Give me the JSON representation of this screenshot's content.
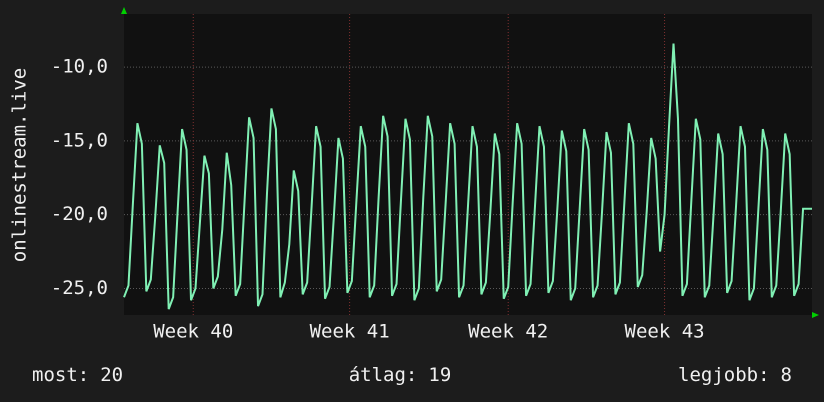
{
  "chart_data": {
    "type": "line",
    "y_label": "onlinestream.live",
    "x": [
      0,
      0.2,
      0.4,
      0.6,
      0.8,
      1,
      1.2,
      1.4,
      1.6,
      1.8,
      2,
      2.2,
      2.4,
      2.6,
      2.8,
      3,
      3.2,
      3.4,
      3.6,
      3.8,
      4,
      4.2,
      4.4,
      4.6,
      4.8,
      5,
      5.2,
      5.4,
      5.6,
      5.8,
      6,
      6.2,
      6.4,
      6.6,
      6.8,
      7,
      7.2,
      7.4,
      7.6,
      7.8,
      8,
      8.2,
      8.4,
      8.6,
      8.8,
      9,
      9.2,
      9.4,
      9.6,
      9.8,
      10,
      10.2,
      10.4,
      10.6,
      10.8,
      11,
      11.2,
      11.4,
      11.6,
      11.8,
      12,
      12.2,
      12.4,
      12.6,
      12.8,
      13,
      13.2,
      13.4,
      13.6,
      13.8,
      14,
      14.2,
      14.4,
      14.6,
      14.8,
      15,
      15.2,
      15.4,
      15.6,
      15.8,
      16,
      16.2,
      16.4,
      16.6,
      16.8,
      17,
      17.2,
      17.4,
      17.6,
      17.8,
      18,
      18.2,
      18.4,
      18.6,
      18.8,
      19,
      19.2,
      19.4,
      19.6,
      19.8,
      20,
      20.2,
      20.4,
      20.6,
      20.8,
      21,
      21.2,
      21.4,
      21.6,
      21.8,
      22,
      22.2,
      22.4,
      22.6,
      22.8,
      23,
      23.2,
      23.4,
      23.6,
      23.8,
      24,
      24.2,
      24.4,
      24.6,
      24.8,
      25,
      25.2,
      25.4,
      25.6,
      25.8,
      26,
      26.2,
      26.4,
      26.6,
      26.8,
      27,
      27.2,
      27.4,
      27.6,
      27.8,
      28,
      28.2,
      28.4,
      28.6,
      28.8,
      29,
      29.2,
      29.4,
      29.6,
      29.8,
      30,
      30.2,
      30.4,
      30.6,
      30.8
    ],
    "series": [
      {
        "name": "onlinestream.live",
        "color": "#80f0b4",
        "values": [
          -25.6,
          -24.8,
          -19.2,
          -13.8,
          -15.2,
          -25.2,
          -24.4,
          -20.1,
          -15.3,
          -16.5,
          -26.4,
          -25.6,
          -19.8,
          -14.2,
          -15.6,
          -25.8,
          -25.0,
          -20.5,
          -16.0,
          -17.2,
          -25.0,
          -24.2,
          -21.0,
          -15.8,
          -18.0,
          -25.5,
          -24.7,
          -19.0,
          -13.4,
          -14.8,
          -26.2,
          -25.4,
          -18.6,
          -12.8,
          -14.2,
          -25.6,
          -24.6,
          -22.0,
          -17.0,
          -18.4,
          -25.4,
          -24.6,
          -19.4,
          -14.0,
          -15.4,
          -25.7,
          -24.9,
          -20.0,
          -14.8,
          -16.2,
          -25.3,
          -24.5,
          -19.2,
          -14.0,
          -15.4,
          -25.6,
          -24.8,
          -18.8,
          -13.3,
          -14.7,
          -25.5,
          -24.7,
          -19.0,
          -13.5,
          -14.9,
          -25.8,
          -25.0,
          -18.8,
          -13.3,
          -14.7,
          -25.2,
          -24.4,
          -19.2,
          -13.8,
          -15.2,
          -25.6,
          -24.8,
          -19.4,
          -14.0,
          -15.4,
          -25.4,
          -24.6,
          -19.8,
          -14.5,
          -15.9,
          -25.7,
          -24.9,
          -19.2,
          -13.8,
          -15.2,
          -25.5,
          -24.7,
          -19.4,
          -14.0,
          -15.4,
          -25.3,
          -24.5,
          -19.6,
          -14.3,
          -15.7,
          -25.8,
          -25.0,
          -19.6,
          -14.2,
          -15.6,
          -25.6,
          -24.8,
          -19.8,
          -14.4,
          -15.8,
          -25.4,
          -24.6,
          -19.2,
          -13.8,
          -15.2,
          -24.9,
          -24.1,
          -19.8,
          -14.8,
          -16.2,
          -22.5,
          -20.0,
          -14.0,
          -8.4,
          -13.5,
          -25.5,
          -24.7,
          -19.0,
          -13.5,
          -14.9,
          -25.6,
          -24.8,
          -19.8,
          -14.5,
          -15.9,
          -25.3,
          -24.5,
          -19.4,
          -14.0,
          -15.4,
          -25.8,
          -25.0,
          -19.6,
          -14.2,
          -15.6,
          -25.6,
          -24.8,
          -19.8,
          -14.5,
          -15.9,
          -25.5,
          -24.7,
          -19.6,
          -19.6,
          -19.6
        ]
      }
    ],
    "xlim": [
      0,
      30.8
    ],
    "xticks": [
      {
        "value": 3.1,
        "label": "Week 40"
      },
      {
        "value": 10.1,
        "label": "Week 41"
      },
      {
        "value": 17.2,
        "label": "Week 42"
      },
      {
        "value": 24.2,
        "label": "Week 43"
      }
    ],
    "ylim": [
      -26.8,
      -6.4
    ],
    "yticks": [
      {
        "value": -25,
        "label": "-25,0"
      },
      {
        "value": -20,
        "label": "-20,0"
      },
      {
        "value": -15,
        "label": "-15,0"
      },
      {
        "value": -10,
        "label": "-10,0"
      }
    ],
    "grid": true,
    "stats": [
      {
        "label": "most:",
        "value": 20
      },
      {
        "label": "átlag:",
        "value": 19
      },
      {
        "label": "legjobb:",
        "value": 8
      }
    ]
  }
}
